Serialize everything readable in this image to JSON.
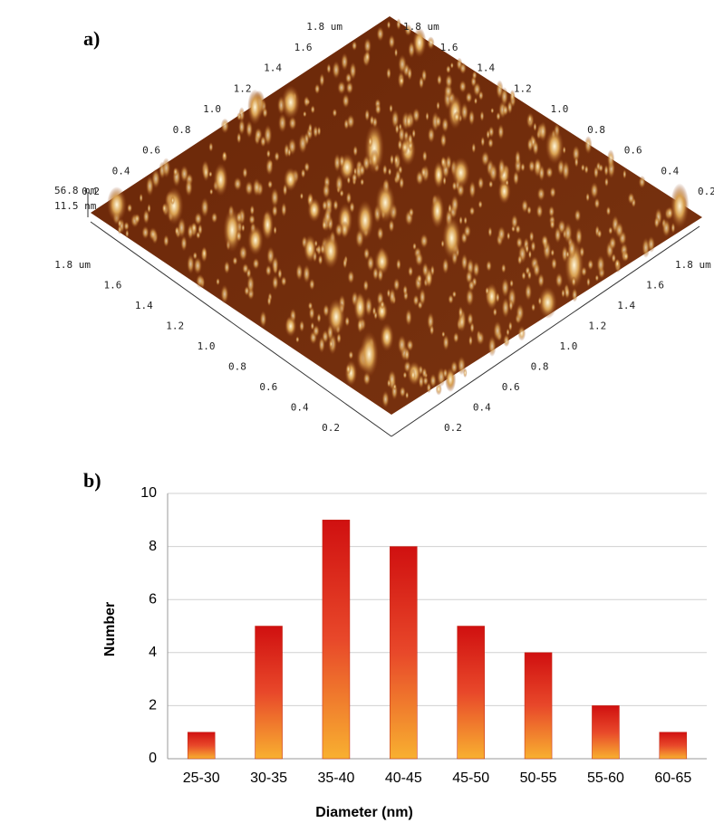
{
  "afm": {
    "label": "a)",
    "z_labels": [
      "56.8 nm",
      "11.5 nm"
    ],
    "axes": {
      "back_left": [
        "1.8 um",
        "1.6",
        "1.4",
        "1.2",
        "1.0",
        "0.8",
        "0.6",
        "0.4",
        "0.2"
      ],
      "back_right": [
        "1.8 um",
        "1.6",
        "1.4",
        "1.2",
        "1.0",
        "0.8",
        "0.6",
        "0.4",
        "0.2"
      ],
      "front_left": [
        "1.8 um",
        "1.6",
        "1.4",
        "1.2",
        "1.0",
        "0.8",
        "0.6",
        "0.4",
        "0.2"
      ],
      "front_right": [
        "1.8 um",
        "1.6",
        "1.4",
        "1.2",
        "1.0",
        "0.8",
        "0.6",
        "0.4",
        "0.2"
      ]
    }
  },
  "chart_data": {
    "type": "bar",
    "label": "b)",
    "categories": [
      "25-30",
      "30-35",
      "35-40",
      "40-45",
      "45-50",
      "50-55",
      "55-60",
      "60-65"
    ],
    "values": [
      1,
      5,
      9,
      8,
      5,
      4,
      2,
      1
    ],
    "xlabel": "Diameter (nm)",
    "ylabel": "Number",
    "ylim": [
      0,
      10
    ],
    "yticks": [
      0,
      2,
      4,
      6,
      8,
      10
    ],
    "grid": true
  }
}
